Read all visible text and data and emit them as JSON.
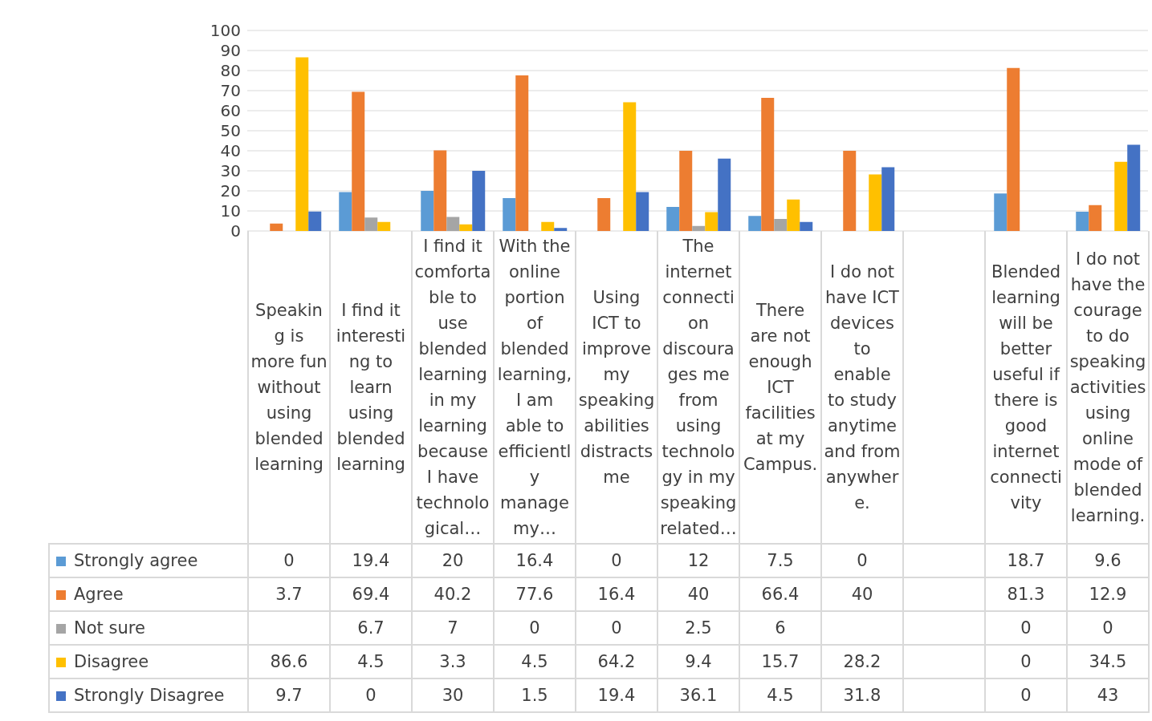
{
  "chart_data": {
    "type": "bar",
    "categories": [
      "Speaking is more fun without using blended learning",
      "I find it interesting to learn using blended learning",
      "I find it comfortable to use blended learning in my learning because I have technological…",
      "With the online portion of blended learning, I am able to efficiently manage my…",
      "Using ICT to improve my speaking abilities distracts me",
      "The internet connection discourages me from using technology in my speaking related…",
      "There are not enough ICT facilities at my Campus.",
      "I do not have ICT devices to enable to study anytime and from anywhere.",
      null,
      "Blended learning will be better useful if there is good internet connectivity",
      "I do not have the courage to do speaking activities using online mode of blended learning."
    ],
    "series": [
      {
        "name": "Strongly agree",
        "color": "#5b9bd5",
        "values": [
          0,
          19.4,
          20,
          16.4,
          0,
          12,
          7.5,
          0,
          null,
          18.7,
          9.6
        ]
      },
      {
        "name": "Agree",
        "color": "#ed7d31",
        "values": [
          3.7,
          69.4,
          40.2,
          77.6,
          16.4,
          40,
          66.4,
          40,
          null,
          81.3,
          12.9
        ]
      },
      {
        "name": "Not sure",
        "color": "#a5a5a5",
        "values": [
          null,
          6.7,
          7,
          0,
          0,
          2.5,
          6,
          null,
          null,
          0,
          0
        ]
      },
      {
        "name": "Disagree",
        "color": "#ffc000",
        "values": [
          86.6,
          4.5,
          3.3,
          4.5,
          64.2,
          9.4,
          15.7,
          28.2,
          null,
          0,
          34.5
        ]
      },
      {
        "name": "Strongly Disagree",
        "color": "#4472c4",
        "values": [
          9.7,
          0,
          30,
          1.5,
          19.4,
          36.1,
          4.5,
          31.8,
          null,
          0,
          43
        ]
      }
    ],
    "ylim": [
      0,
      100
    ],
    "yticks": [
      0,
      10,
      20,
      30,
      40,
      50,
      60,
      70,
      80,
      90,
      100
    ],
    "grid": "y",
    "legend": "bottom",
    "data_labels": true
  }
}
